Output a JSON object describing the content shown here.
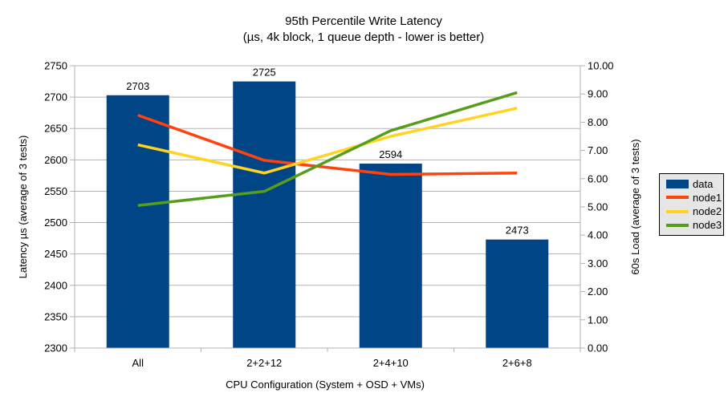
{
  "chart_data": {
    "type": "bar+line",
    "title": "95th Percentile Write Latency",
    "subtitle": "(µs, 4k block, 1 queue depth - lower is better)",
    "categories": [
      "All",
      "2+2+12",
      "2+4+10",
      "2+6+8"
    ],
    "xlabel": "CPU Configuration (System + OSD + VMs)",
    "left_axis": {
      "label": "Latency µs (average of 3 tests)",
      "min": 2300,
      "max": 2750,
      "step": 50,
      "decimals": 0
    },
    "right_axis": {
      "label": "60s Load (average of 3 tests)",
      "min": 0,
      "max": 10,
      "step": 1,
      "decimals": 2
    },
    "bar_series": {
      "name": "data",
      "axis": "left",
      "color": "#004586",
      "values": [
        2703,
        2725,
        2594,
        2473
      ],
      "labels": [
        "2703",
        "2725",
        "2594",
        "2473"
      ]
    },
    "line_series": [
      {
        "name": "node1",
        "axis": "right",
        "color": "#FF420E",
        "values": [
          8.25,
          6.65,
          6.15,
          6.2
        ]
      },
      {
        "name": "node2",
        "axis": "right",
        "color": "#FFD320",
        "values": [
          7.2,
          6.2,
          7.5,
          8.5
        ]
      },
      {
        "name": "node3",
        "axis": "right",
        "color": "#579D1C",
        "values": [
          5.05,
          5.55,
          7.7,
          9.05
        ]
      }
    ],
    "legend": {
      "position": "right",
      "items": [
        {
          "label": "data",
          "type": "bar"
        },
        {
          "label": "node1",
          "type": "line"
        },
        {
          "label": "node2",
          "type": "line"
        },
        {
          "label": "node3",
          "type": "line"
        }
      ]
    },
    "grid": true,
    "colors": {
      "background": "#ffffff",
      "grid": "#b3b3b3",
      "axis": "#b3b3b3",
      "text": "#000000",
      "legend_bg": "#e6e6e6",
      "legend_border": "#000000"
    }
  }
}
